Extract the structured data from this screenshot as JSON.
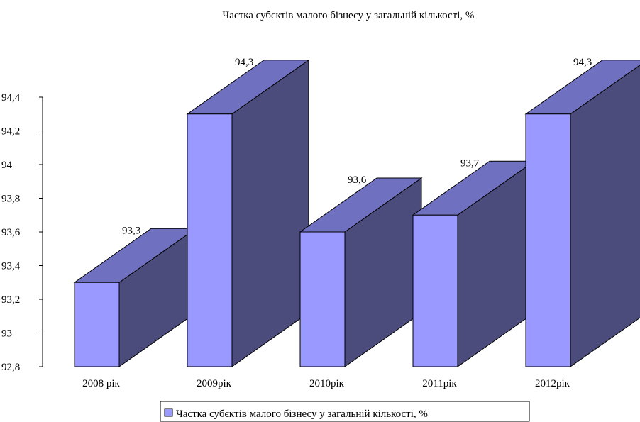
{
  "chart_data": {
    "type": "bar",
    "title": "Частка субєктів малого бізнесу у загальній кількості, %",
    "categories": [
      "2008 рік",
      "2009рік",
      "2010рік",
      "2011рік",
      "2012рік"
    ],
    "series": [
      {
        "name": "Частка субєктів малого бізнесу у загальній кількості, %",
        "values": [
          93.3,
          94.3,
          93.6,
          93.7,
          94.3
        ],
        "data_labels": [
          "93,3",
          "94,3",
          "93,6",
          "93,7",
          "94,3"
        ]
      }
    ],
    "ylim": [
      92.8,
      94.4
    ],
    "y_ticks": [
      "92,8",
      "93",
      "93,2",
      "93,4",
      "93,6",
      "93,8",
      "94",
      "94,2",
      "94,4"
    ],
    "xlabel": "",
    "ylabel": "",
    "grid": false,
    "legend_position": "bottom",
    "colors": {
      "front": "#9999ff",
      "top": "#7070c0",
      "side": "#4c4c7c",
      "outline": "#000000"
    }
  }
}
